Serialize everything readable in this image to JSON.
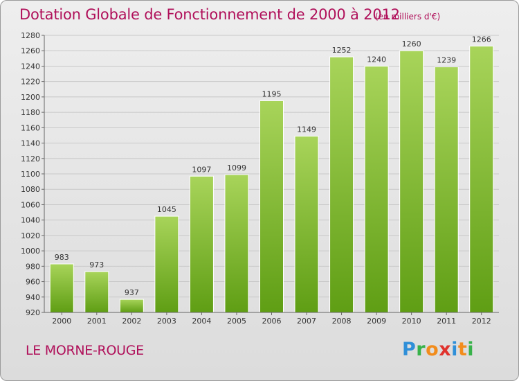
{
  "header": {
    "title": "Dotation Globale de Fonctionnement de 2000 à 2012",
    "subtitle": "(en milliers d'€)"
  },
  "footer": {
    "place": "LE MORNE-ROUGE",
    "logo_letters": [
      "P",
      "r",
      "o",
      "x",
      "i",
      "t",
      "i"
    ]
  },
  "colors": {
    "accent": "#b0105a",
    "bar_light": "#a8d45a",
    "bar_dark": "#5f9e14"
  },
  "chart_data": {
    "type": "bar",
    "title": "Dotation Globale de Fonctionnement de 2000 à 2012",
    "subtitle": "(en milliers d'€)",
    "xlabel": "",
    "ylabel": "",
    "categories": [
      "2000",
      "2001",
      "2002",
      "2003",
      "2004",
      "2005",
      "2006",
      "2007",
      "2008",
      "2009",
      "2010",
      "2011",
      "2012"
    ],
    "values": [
      983,
      973,
      937,
      1045,
      1097,
      1099,
      1195,
      1149,
      1252,
      1240,
      1260,
      1239,
      1266
    ],
    "ylim": [
      920,
      1280
    ],
    "yticks": [
      920,
      940,
      960,
      980,
      1000,
      1020,
      1040,
      1060,
      1080,
      1100,
      1120,
      1140,
      1160,
      1180,
      1200,
      1220,
      1240,
      1260,
      1280
    ],
    "grid": true,
    "legend": "none"
  }
}
